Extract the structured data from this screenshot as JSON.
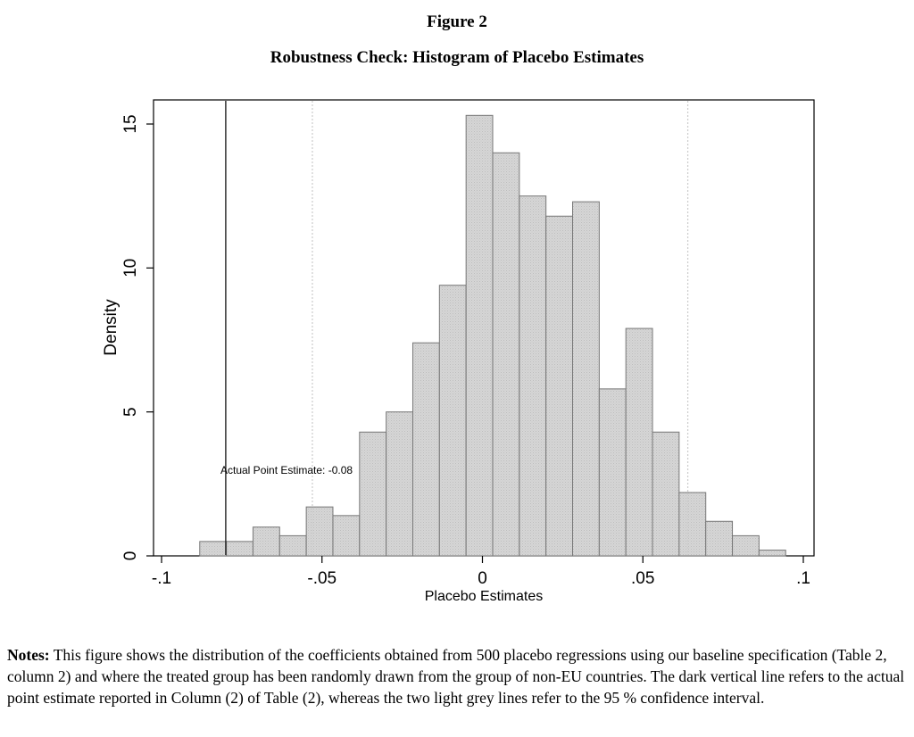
{
  "figure_label": "Figure 2",
  "figure_title": "Robustness Check: Histogram of Placebo Estimates",
  "chart_data": {
    "type": "bar",
    "xlabel": "Placebo Estimates",
    "ylabel": "Density",
    "xlim": [
      -0.1,
      0.1
    ],
    "ylim": [
      0,
      15
    ],
    "x_ticks": [
      -0.1,
      -0.05,
      0,
      0.05,
      0.1
    ],
    "x_tick_labels": [
      "-.1",
      "-.05",
      "0",
      ".05",
      ".1"
    ],
    "y_ticks": [
      0,
      5,
      10,
      15
    ],
    "y_tick_labels": [
      "0",
      "5",
      "10",
      "15"
    ],
    "bin_width": 0.0083,
    "bin_starts": [
      -0.0881,
      -0.0798,
      -0.0715,
      -0.0632,
      -0.0549,
      -0.0466,
      -0.0383,
      -0.03,
      -0.0217,
      -0.0134,
      -0.0051,
      0.0032,
      0.0115,
      0.0198,
      0.0281,
      0.0364,
      0.0447,
      0.053,
      0.0613,
      0.0696,
      0.0779,
      0.0862
    ],
    "values": [
      0.5,
      0.5,
      1.0,
      0.7,
      1.7,
      1.4,
      4.3,
      5.0,
      7.4,
      9.4,
      15.3,
      14.0,
      12.5,
      11.8,
      12.3,
      5.8,
      7.9,
      4.3,
      2.2,
      1.2,
      0.7,
      0.2
    ],
    "reference_lines": [
      {
        "x": -0.08,
        "style": "dark",
        "label": "Actual Point Estimate: -0.08"
      },
      {
        "x": -0.053,
        "style": "light"
      },
      {
        "x": 0.064,
        "style": "light"
      }
    ],
    "grid": false,
    "legend": "none"
  },
  "notes": {
    "label": "Notes:",
    "text": "This figure shows the distribution of the coefficients obtained from 500 placebo regressions using our baseline specification (Table 2, column 2) and where the treated group has been randomly drawn from the group of non-EU countries. The dark vertical line refers to the actual point estimate reported in Column (2) of Table (2), whereas the two light grey lines refer to the 95 % confidence interval."
  },
  "colors": {
    "bar_fill": "#d2d2d2",
    "bar_stroke": "#777777",
    "dark_line": "#222222",
    "light_line": "#cccccc"
  }
}
